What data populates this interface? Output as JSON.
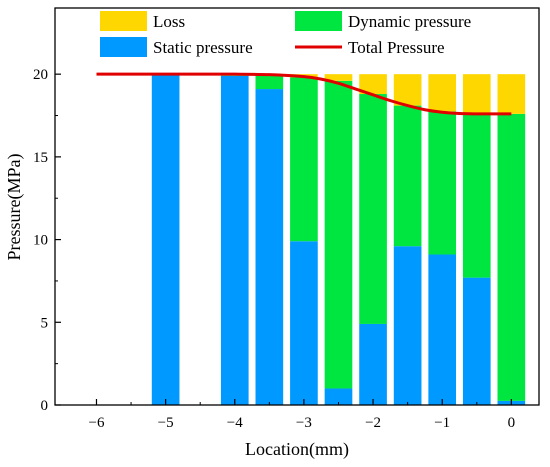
{
  "chart_data": {
    "type": "bar",
    "stacked": true,
    "xlabel": "Location(mm)",
    "ylabel": "Pressure(MPa)",
    "xlim": [
      -6.6,
      0.4
    ],
    "ylim": [
      0,
      24
    ],
    "xticks": [
      -6,
      -5,
      -4,
      -3,
      -2,
      -1,
      0
    ],
    "xtick_labels": [
      "−6",
      "−5",
      "−4",
      "−3",
      "−2",
      "−1",
      "0"
    ],
    "yticks": [
      0,
      5,
      10,
      15,
      20
    ],
    "yticks_minor": [
      2.5,
      7.5,
      12.5,
      17.5
    ],
    "xticks_minor": [
      -5.5,
      -4.5,
      -3.5,
      -2.5,
      -1.5,
      -0.5
    ],
    "bar_width": 0.4,
    "grid": false,
    "legend_placement": "top",
    "x": [
      -5,
      -4,
      -3.5,
      -3,
      -2.5,
      -2,
      -1.5,
      -1,
      -0.5,
      0
    ],
    "series": [
      {
        "name": "Static pressure",
        "color": "#0099FF",
        "values": [
          20,
          19.9,
          19.1,
          9.9,
          1.0,
          4.9,
          9.6,
          9.1,
          7.7,
          0.25
        ]
      },
      {
        "name": "Dynamic pressure",
        "color": "#00E640",
        "values": [
          0,
          0.1,
          0.9,
          9.9,
          18.6,
          13.9,
          8.5,
          8.65,
          9.9,
          17.35
        ]
      },
      {
        "name": "Loss",
        "color": "#FFD700",
        "values": [
          0,
          0,
          0,
          0.2,
          0.4,
          1.2,
          1.9,
          2.25,
          2.4,
          2.4
        ]
      }
    ],
    "line": {
      "name": "Total Pressure",
      "color": "#E00000",
      "x": [
        -6,
        -5.5,
        -5,
        -4.5,
        -4,
        -3.5,
        -3,
        -2.75,
        -2.5,
        -2.25,
        -2,
        -1.75,
        -1.5,
        -1.25,
        -1,
        -0.75,
        -0.5,
        -0.25,
        0
      ],
      "y": [
        20,
        20,
        20,
        20,
        20,
        19.97,
        19.85,
        19.7,
        19.45,
        19.1,
        18.75,
        18.4,
        18.1,
        17.85,
        17.7,
        17.62,
        17.6,
        17.6,
        17.6
      ]
    },
    "legend": [
      {
        "label": "Loss",
        "color": "#FFD700",
        "kind": "patch"
      },
      {
        "label": "Dynamic pressure",
        "color": "#00E640",
        "kind": "patch"
      },
      {
        "label": "Static pressure",
        "color": "#0099FF",
        "kind": "patch"
      },
      {
        "label": "Total Pressure",
        "color": "#E00000",
        "kind": "line"
      }
    ]
  }
}
